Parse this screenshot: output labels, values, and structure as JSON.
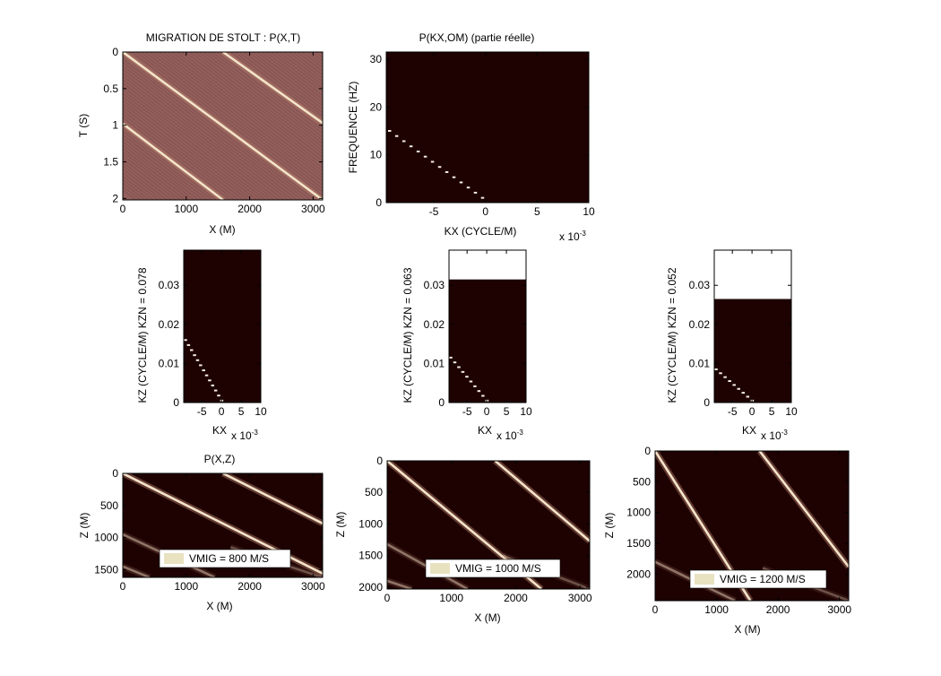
{
  "colors": {
    "background": "#ffffff",
    "dark_field": "#1e0202",
    "mauve_field": "#93605d",
    "stripe_light": "#f4e4ca",
    "white_band": "#ffffff",
    "legend_swatch": "#e8e2c0"
  },
  "chart_data": [
    {
      "id": "pxt",
      "type": "heatmap",
      "title": "MIGRATION DE STOLT : P(X,T)",
      "xlabel": "X (M)",
      "ylabel": "T (S)",
      "xlim": [
        0,
        3150
      ],
      "ylim": [
        0,
        2.02
      ],
      "y_reversed": true,
      "xticks": [
        0,
        1000,
        2000,
        3000
      ],
      "xticklabels": [
        "0",
        "1000",
        "2000",
        "3000"
      ],
      "yticks": [
        0,
        0.5,
        1,
        1.5,
        2
      ],
      "yticklabels": [
        "0",
        "0.5",
        "1",
        "1.5",
        "2"
      ],
      "background": "mauve",
      "events": [
        {
          "x": [
            0,
            3150
          ],
          "y": [
            0,
            2.02
          ],
          "intensity": 1.0
        },
        {
          "x": [
            1580,
            3150
          ],
          "y": [
            0,
            0.97
          ],
          "intensity": 1.0
        },
        {
          "x": [
            0,
            1580
          ],
          "y": [
            0.98,
            2.02
          ],
          "intensity": 1.0
        }
      ]
    },
    {
      "id": "pkxom",
      "type": "heatmap",
      "title": "P(KX,OM) (partie réelle)",
      "xlabel": "KX (CYCLE/M)",
      "ylabel": "FREQUENCE (HZ)",
      "x_multiplier": "x 10",
      "x_multiplier_exp": "-3",
      "xlim": [
        -9.6,
        10
      ],
      "ylim": [
        0,
        31.5
      ],
      "xticks": [
        -5,
        0,
        5,
        10
      ],
      "xticklabels": [
        "-5",
        "0",
        "5",
        "10"
      ],
      "yticks": [
        0,
        10,
        20,
        30
      ],
      "yticklabels": [
        "0",
        "10",
        "20",
        "30"
      ],
      "background": "dark",
      "dots": {
        "from": [
          -9.3,
          15
        ],
        "to": [
          -0.3,
          1
        ],
        "count": 14
      }
    },
    {
      "id": "kz78",
      "type": "heatmap",
      "ylabel": "KZ (CYCLE/M) KZN = 0.078",
      "xlabel": "KX",
      "x_multiplier": "x 10",
      "x_multiplier_exp": "-3",
      "xlim": [
        -9.6,
        10
      ],
      "ylim": [
        0,
        0.039
      ],
      "xticks": [
        -5,
        0,
        5,
        10
      ],
      "xticklabels": [
        "-5",
        "0",
        "5",
        "10"
      ],
      "yticks": [
        0,
        0.01,
        0.02,
        0.03
      ],
      "yticklabels": [
        "0",
        "0.01",
        "0.02",
        "0.03"
      ],
      "kz_max": 0.039,
      "dots": {
        "from": [
          -9.2,
          0.016
        ],
        "to": [
          0,
          0.0005
        ],
        "count": 13
      }
    },
    {
      "id": "kz63",
      "type": "heatmap",
      "ylabel": "KZ (CYCLE/M) KZN = 0.063",
      "xlabel": "KX",
      "x_multiplier": "x 10",
      "x_multiplier_exp": "-3",
      "xlim": [
        -9.6,
        10
      ],
      "ylim": [
        0,
        0.039
      ],
      "xticks": [
        -5,
        0,
        5,
        10
      ],
      "xticklabels": [
        "-5",
        "0",
        "5",
        "10"
      ],
      "yticks": [
        0,
        0.01,
        0.02,
        0.03
      ],
      "yticklabels": [
        "0",
        "0.01",
        "0.02",
        "0.03"
      ],
      "kz_max": 0.0315,
      "dots": {
        "from": [
          -9.2,
          0.0115
        ],
        "to": [
          0,
          0.0005
        ],
        "count": 10
      }
    },
    {
      "id": "kz52",
      "type": "heatmap",
      "ylabel": "KZ (CYCLE/M) KZN = 0.052",
      "xlabel": "KX",
      "x_multiplier": "x 10",
      "x_multiplier_exp": "-3",
      "xlim": [
        -9.6,
        10
      ],
      "ylim": [
        0,
        0.039
      ],
      "xticks": [
        -5,
        0,
        5,
        10
      ],
      "xticklabels": [
        "-5",
        "0",
        "5",
        "10"
      ],
      "yticks": [
        0,
        0.01,
        0.02,
        0.03
      ],
      "yticklabels": [
        "0",
        "0.01",
        "0.02",
        "0.03"
      ],
      "kz_max": 0.0265,
      "dots": {
        "from": [
          -9.2,
          0.0085
        ],
        "to": [
          0,
          0.0005
        ],
        "count": 9
      }
    },
    {
      "id": "pxz800",
      "type": "heatmap",
      "title": "P(X,Z)",
      "xlabel": "X (M)",
      "ylabel": "Z (M)",
      "xlim": [
        0,
        3150
      ],
      "ylim": [
        0,
        1620
      ],
      "y_reversed": true,
      "xticks": [
        0,
        1000,
        2000,
        3000
      ],
      "xticklabels": [
        "0",
        "1000",
        "2000",
        "3000"
      ],
      "yticks": [
        0,
        500,
        1000,
        1500
      ],
      "yticklabels": [
        "0",
        "500",
        "1000",
        "1500"
      ],
      "legend": "VMIG = 800 M/S",
      "background": "dark",
      "events": [
        {
          "x": [
            0,
            3150
          ],
          "y": [
            0,
            1560
          ],
          "intensity": 1.0
        },
        {
          "x": [
            1580,
            3150
          ],
          "y": [
            0,
            780
          ],
          "intensity": 1.0
        },
        {
          "x": [
            0,
            1450
          ],
          "y": [
            950,
            1620
          ],
          "intensity": 0.45
        },
        {
          "x": [
            0,
            420
          ],
          "y": [
            1450,
            1620
          ],
          "intensity": 0.45
        },
        {
          "x": [
            1700,
            3150
          ],
          "y": [
            1150,
            1620
          ],
          "intensity": 0.3
        }
      ]
    },
    {
      "id": "pxz1000",
      "type": "heatmap",
      "xlabel": "X (M)",
      "ylabel": "Z (M)",
      "xlim": [
        0,
        3150
      ],
      "ylim": [
        0,
        2030
      ],
      "y_reversed": true,
      "xticks": [
        0,
        1000,
        2000,
        3000
      ],
      "xticklabels": [
        "0",
        "1000",
        "2000",
        "3000"
      ],
      "yticks": [
        0,
        500,
        1000,
        1500,
        2000
      ],
      "yticklabels": [
        "0",
        "500",
        "1000",
        "1500",
        "2000"
      ],
      "legend": "VMIG = 1000 M/S",
      "background": "dark",
      "events": [
        {
          "x": [
            0,
            2400
          ],
          "y": [
            0,
            2030
          ],
          "intensity": 1.0
        },
        {
          "x": [
            1680,
            3150
          ],
          "y": [
            0,
            1270
          ],
          "intensity": 1.0
        },
        {
          "x": [
            0,
            1250
          ],
          "y": [
            1320,
            2030
          ],
          "intensity": 0.45
        },
        {
          "x": [
            0,
            380
          ],
          "y": [
            1900,
            2030
          ],
          "intensity": 0.45
        },
        {
          "x": [
            1800,
            3150
          ],
          "y": [
            1500,
            2030
          ],
          "intensity": 0.3
        }
      ]
    },
    {
      "id": "pxz1200",
      "type": "heatmap",
      "xlabel": "X (M)",
      "ylabel": "Z (M)",
      "xlim": [
        0,
        3150
      ],
      "ylim": [
        0,
        2430
      ],
      "y_reversed": true,
      "xticks": [
        0,
        1000,
        2000,
        3000
      ],
      "xticklabels": [
        "0",
        "1000",
        "2000",
        "3000"
      ],
      "yticks": [
        0,
        500,
        1000,
        1500,
        2000
      ],
      "yticklabels": [
        "0",
        "500",
        "1000",
        "1500",
        "2000"
      ],
      "legend": "VMIG = 1200 M/S",
      "background": "dark",
      "events": [
        {
          "x": [
            0,
            1550
          ],
          "y": [
            0,
            2430
          ],
          "intensity": 1.0
        },
        {
          "x": [
            1700,
            3150
          ],
          "y": [
            0,
            1880
          ],
          "intensity": 1.0
        },
        {
          "x": [
            0,
            1300
          ],
          "y": [
            1800,
            2430
          ],
          "intensity": 0.45
        },
        {
          "x": [
            1750,
            3150
          ],
          "y": [
            1900,
            2430
          ],
          "intensity": 0.3
        }
      ]
    }
  ]
}
